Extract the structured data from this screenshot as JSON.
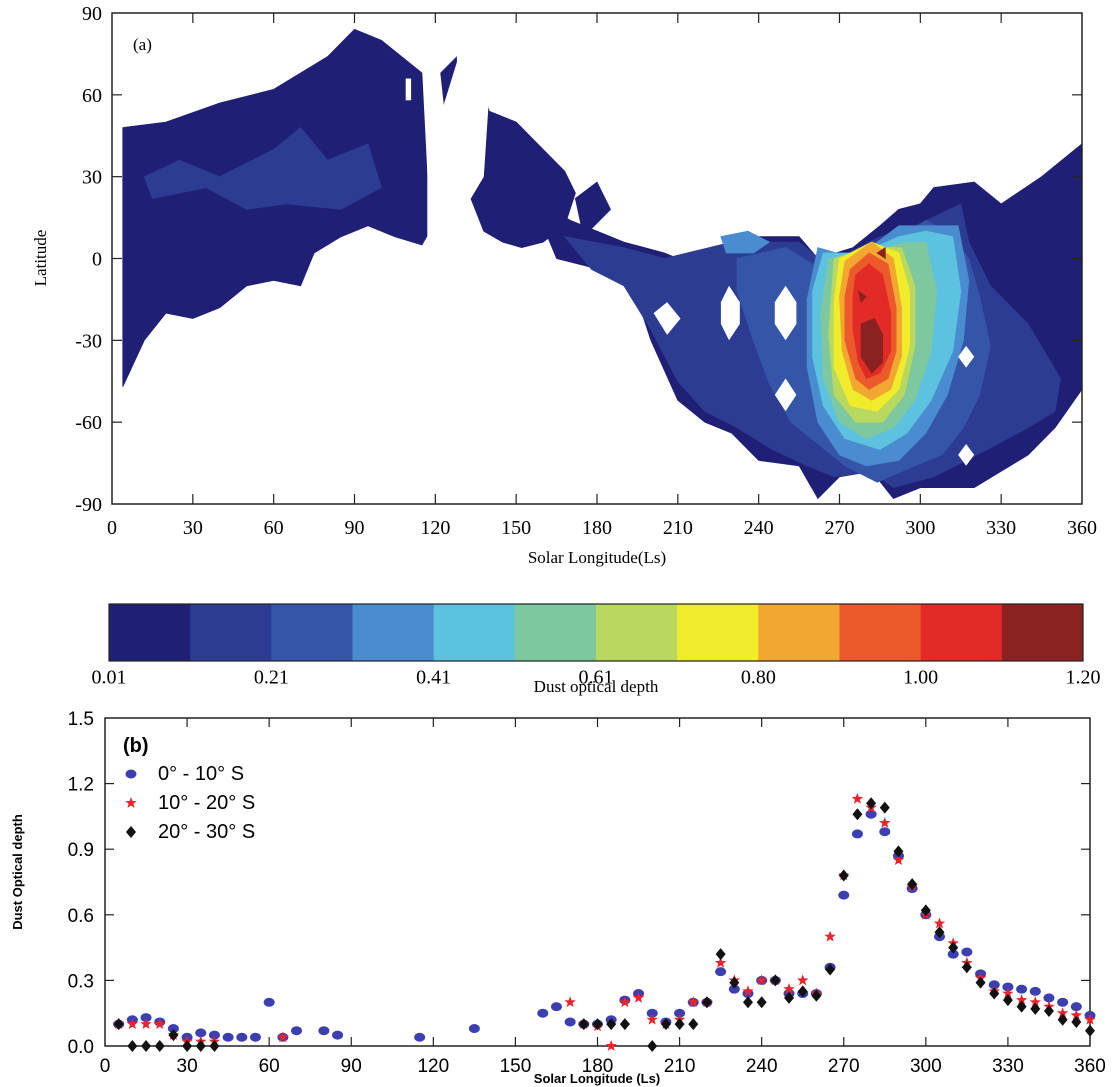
{
  "chart_data": [
    {
      "type": "heatmap",
      "panel_label": "(a)",
      "xlabel": "Solar Longitude(Ls)",
      "ylabel": "Latitude",
      "xlim": [
        0,
        360
      ],
      "ylim": [
        -90,
        90
      ],
      "xticks": [
        "0",
        "30",
        "60",
        "90",
        "120",
        "150",
        "180",
        "210",
        "240",
        "270",
        "300",
        "330",
        "360"
      ],
      "yticks": [
        "90",
        "60",
        "30",
        "0",
        "-30",
        "-60",
        "-90"
      ],
      "colorbar": {
        "label": "Dust optical depth",
        "tick_labels": [
          "0.01",
          "0.21",
          "0.41",
          "0.61",
          "0.80",
          "1.00",
          "1.20"
        ],
        "colors": [
          "#1f1f75",
          "#2c3c93",
          "#3555a8",
          "#4a8cd0",
          "#5cc2e0",
          "#7ec8a0",
          "#b8d860",
          "#f0ec2c",
          "#f2a830",
          "#ec5a2c",
          "#e22a26",
          "#8a2222"
        ]
      }
    },
    {
      "type": "scatter",
      "panel_label": "(b)",
      "xlabel": "Solar Longitude (Ls)",
      "ylabel": "Dust Optical depth",
      "xlim": [
        0,
        360
      ],
      "ylim": [
        0,
        1.5
      ],
      "xticks": [
        "0",
        "30",
        "60",
        "90",
        "120",
        "150",
        "180",
        "210",
        "240",
        "270",
        "300",
        "330",
        "360"
      ],
      "yticks": [
        "1.5",
        "1.2",
        "0.9",
        "0.6",
        "0.3",
        "0.0"
      ],
      "series": [
        {
          "name": "0° - 10° S",
          "color": "#3b3fb0",
          "marker": "circle",
          "x": [
            5,
            10,
            15,
            20,
            25,
            30,
            35,
            40,
            45,
            50,
            55,
            60,
            65,
            70,
            80,
            85,
            115,
            135,
            160,
            165,
            170,
            175,
            180,
            185,
            190,
            195,
            200,
            205,
            210,
            215,
            220,
            225,
            230,
            235,
            240,
            245,
            250,
            255,
            260,
            265,
            270,
            275,
            280,
            285,
            290,
            295,
            300,
            305,
            310,
            315,
            320,
            325,
            330,
            335,
            340,
            345,
            350,
            355,
            360
          ],
          "y": [
            0.1,
            0.12,
            0.13,
            0.11,
            0.08,
            0.04,
            0.06,
            0.05,
            0.04,
            0.04,
            0.04,
            0.2,
            0.04,
            0.07,
            0.07,
            0.05,
            0.04,
            0.08,
            0.15,
            0.18,
            0.11,
            0.1,
            0.1,
            0.12,
            0.21,
            0.24,
            0.15,
            0.11,
            0.15,
            0.2,
            0.2,
            0.34,
            0.26,
            0.24,
            0.3,
            0.3,
            0.24,
            0.24,
            0.24,
            0.36,
            0.69,
            0.97,
            1.06,
            0.98,
            0.87,
            0.72,
            0.6,
            0.5,
            0.42,
            0.43,
            0.33,
            0.28,
            0.27,
            0.26,
            0.25,
            0.22,
            0.2,
            0.18,
            0.14
          ]
        },
        {
          "name": "10° - 20° S",
          "color": "#e8242c",
          "marker": "star",
          "x": [
            5,
            10,
            15,
            20,
            25,
            30,
            35,
            40,
            65,
            170,
            175,
            180,
            185,
            190,
            195,
            200,
            205,
            210,
            215,
            220,
            225,
            230,
            235,
            240,
            245,
            250,
            255,
            260,
            265,
            270,
            275,
            280,
            285,
            290,
            295,
            300,
            305,
            310,
            315,
            320,
            325,
            330,
            335,
            340,
            345,
            350,
            355,
            360
          ],
          "y": [
            0.1,
            0.1,
            0.1,
            0.1,
            0.05,
            0.02,
            0.02,
            0.02,
            0.04,
            0.2,
            0.1,
            0.09,
            0.0,
            0.2,
            0.22,
            0.12,
            0.1,
            0.12,
            0.2,
            0.2,
            0.38,
            0.3,
            0.25,
            0.3,
            0.3,
            0.26,
            0.3,
            0.24,
            0.5,
            0.78,
            1.13,
            1.09,
            1.02,
            0.85,
            0.73,
            0.6,
            0.56,
            0.47,
            0.38,
            0.31,
            0.25,
            0.24,
            0.21,
            0.2,
            0.18,
            0.15,
            0.14,
            0.12
          ]
        },
        {
          "name": "20° - 30° S",
          "color": "#111111",
          "marker": "diamond",
          "x": [
            5,
            10,
            15,
            20,
            25,
            30,
            35,
            40,
            175,
            180,
            185,
            190,
            200,
            205,
            210,
            215,
            220,
            225,
            230,
            235,
            240,
            245,
            250,
            255,
            260,
            265,
            270,
            275,
            280,
            285,
            290,
            295,
            300,
            305,
            310,
            315,
            320,
            325,
            330,
            335,
            340,
            345,
            350,
            355,
            360
          ],
          "y": [
            0.1,
            0.0,
            0.0,
            0.0,
            0.05,
            0.0,
            0.0,
            0.0,
            0.1,
            0.1,
            0.1,
            0.1,
            0.0,
            0.1,
            0.1,
            0.1,
            0.2,
            0.42,
            0.29,
            0.2,
            0.2,
            0.3,
            0.22,
            0.25,
            0.23,
            0.35,
            0.78,
            1.06,
            1.11,
            1.09,
            0.89,
            0.74,
            0.62,
            0.52,
            0.45,
            0.36,
            0.29,
            0.24,
            0.21,
            0.18,
            0.17,
            0.16,
            0.12,
            0.11,
            0.07
          ]
        }
      ]
    }
  ]
}
